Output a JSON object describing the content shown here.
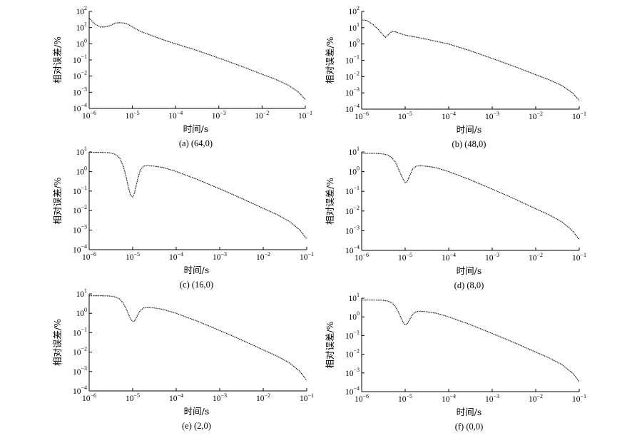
{
  "chart_data": [
    {
      "type": "line",
      "caption": "(a) (64,0)",
      "xlabel": "时间/s",
      "ylabel": "相对误差/%",
      "xscale": "log",
      "yscale": "log",
      "xlim": [
        1e-06,
        0.1
      ],
      "ylim": [
        0.0001,
        100.0
      ],
      "x_ticks": [
        {
          "base": "10",
          "exp": "−6"
        },
        {
          "base": "10",
          "exp": "−5"
        },
        {
          "base": "10",
          "exp": "−4"
        },
        {
          "base": "10",
          "exp": "−3"
        },
        {
          "base": "10",
          "exp": "−2"
        },
        {
          "base": "10",
          "exp": "−1"
        }
      ],
      "y_ticks": [
        {
          "base": "10",
          "exp": "2"
        },
        {
          "base": "10",
          "exp": "1"
        },
        {
          "base": "10",
          "exp": "0"
        },
        {
          "base": "10",
          "exp": "−1"
        },
        {
          "base": "10",
          "exp": "−2"
        },
        {
          "base": "10",
          "exp": "−3"
        },
        {
          "base": "10",
          "exp": "−4"
        }
      ],
      "series": [
        {
          "x": [
            1e-06,
            1.3e-06,
            1.8e-06,
            2.3e-06,
            3e-06,
            4e-06,
            5e-06,
            6.5e-06,
            8e-06,
            1e-05,
            1.5e-05,
            2e-05,
            3e-05,
            5e-05,
            0.0001,
            0.0003,
            0.001,
            0.003,
            0.01,
            0.02,
            0.04,
            0.07,
            0.1
          ],
          "y": [
            40,
            18,
            11,
            11,
            13,
            19,
            20,
            19,
            16,
            11,
            6,
            4.5,
            3,
            1.8,
            1,
            0.4,
            0.13,
            0.045,
            0.013,
            0.0065,
            0.0028,
            0.001,
            0.00035
          ]
        }
      ]
    },
    {
      "type": "line",
      "caption": "(b) (48,0)",
      "xlabel": "时间/s",
      "ylabel": "相对误差/%",
      "xscale": "log",
      "yscale": "log",
      "xlim": [
        1e-06,
        0.1
      ],
      "ylim": [
        0.0001,
        100.0
      ],
      "x_ticks": [
        {
          "base": "10",
          "exp": "−6"
        },
        {
          "base": "10",
          "exp": "−5"
        },
        {
          "base": "10",
          "exp": "−4"
        },
        {
          "base": "10",
          "exp": "−3"
        },
        {
          "base": "10",
          "exp": "−2"
        },
        {
          "base": "10",
          "exp": "−1"
        }
      ],
      "y_ticks": [
        {
          "base": "10",
          "exp": "2"
        },
        {
          "base": "10",
          "exp": "1"
        },
        {
          "base": "10",
          "exp": "0"
        },
        {
          "base": "10",
          "exp": "−1"
        },
        {
          "base": "10",
          "exp": "−2"
        },
        {
          "base": "10",
          "exp": "−3"
        },
        {
          "base": "10",
          "exp": "−4"
        }
      ],
      "series": [
        {
          "x": [
            1e-06,
            1.3e-06,
            1.8e-06,
            2.4e-06,
            3e-06,
            3.5e-06,
            4.2e-06,
            5e-06,
            6e-06,
            8e-06,
            1e-05,
            2e-05,
            5e-05,
            0.0001,
            0.0003,
            0.001,
            0.003,
            0.01,
            0.02,
            0.04,
            0.07,
            0.1
          ],
          "y": [
            30,
            28,
            16,
            8,
            4,
            2.5,
            4,
            6,
            5.5,
            4.2,
            3.5,
            2.5,
            1.5,
            1,
            0.4,
            0.13,
            0.045,
            0.013,
            0.0065,
            0.0028,
            0.001,
            0.00035
          ]
        }
      ]
    },
    {
      "type": "line",
      "caption": "(c) (16,0)",
      "xlabel": "时间/s",
      "ylabel": "相对误差/%",
      "xscale": "log",
      "yscale": "log",
      "xlim": [
        1e-06,
        0.1
      ],
      "ylim": [
        0.0001,
        10.0
      ],
      "x_ticks": [
        {
          "base": "10",
          "exp": "−6"
        },
        {
          "base": "10",
          "exp": "−5"
        },
        {
          "base": "10",
          "exp": "−4"
        },
        {
          "base": "10",
          "exp": "−3"
        },
        {
          "base": "10",
          "exp": "−2"
        },
        {
          "base": "10",
          "exp": "−1"
        }
      ],
      "y_ticks": [
        {
          "base": "10",
          "exp": "1"
        },
        {
          "base": "10",
          "exp": "0"
        },
        {
          "base": "10",
          "exp": "−1"
        },
        {
          "base": "10",
          "exp": "−2"
        },
        {
          "base": "10",
          "exp": "−3"
        },
        {
          "base": "10",
          "exp": "−4"
        }
      ],
      "series": [
        {
          "x": [
            1e-06,
            2e-06,
            3e-06,
            4e-06,
            5e-06,
            6e-06,
            7e-06,
            8e-06,
            9e-06,
            1e-05,
            1.1e-05,
            1.3e-05,
            1.5e-05,
            1.8e-05,
            2.2e-05,
            3e-05,
            5e-05,
            0.0001,
            0.0003,
            0.001,
            0.003,
            0.01,
            0.02,
            0.04,
            0.07,
            0.1
          ],
          "y": [
            9.5,
            9.5,
            9,
            7.5,
            5,
            2,
            0.6,
            0.15,
            0.06,
            0.05,
            0.08,
            0.4,
            1.2,
            1.9,
            2,
            1.9,
            1.6,
            1,
            0.4,
            0.13,
            0.045,
            0.013,
            0.0065,
            0.0028,
            0.001,
            0.00035
          ]
        }
      ]
    },
    {
      "type": "line",
      "caption": "(d) (8,0)",
      "xlabel": "时间/s",
      "ylabel": "相对误差/%",
      "xscale": "log",
      "yscale": "log",
      "xlim": [
        1e-06,
        0.1
      ],
      "ylim": [
        0.0001,
        10.0
      ],
      "x_ticks": [
        {
          "base": "10",
          "exp": "−6"
        },
        {
          "base": "10",
          "exp": "−5"
        },
        {
          "base": "10",
          "exp": "−4"
        },
        {
          "base": "10",
          "exp": "−3"
        },
        {
          "base": "10",
          "exp": "−2"
        },
        {
          "base": "10",
          "exp": "−1"
        }
      ],
      "y_ticks": [
        {
          "base": "10",
          "exp": "1"
        },
        {
          "base": "10",
          "exp": "0"
        },
        {
          "base": "10",
          "exp": "−1"
        },
        {
          "base": "10",
          "exp": "−2"
        },
        {
          "base": "10",
          "exp": "−3"
        },
        {
          "base": "10",
          "exp": "−4"
        }
      ],
      "series": [
        {
          "x": [
            1e-06,
            2e-06,
            3e-06,
            4e-06,
            5e-06,
            6e-06,
            7e-06,
            8e-06,
            9e-06,
            1e-05,
            1.1e-05,
            1.3e-05,
            1.5e-05,
            1.8e-05,
            2.2e-05,
            3e-05,
            5e-05,
            0.0001,
            0.0003,
            0.001,
            0.003,
            0.01,
            0.02,
            0.04,
            0.07,
            0.1
          ],
          "y": [
            8.5,
            8.5,
            8,
            7,
            5,
            3,
            1.4,
            0.7,
            0.4,
            0.28,
            0.3,
            0.7,
            1.4,
            1.9,
            2,
            1.9,
            1.6,
            1,
            0.4,
            0.13,
            0.045,
            0.013,
            0.0065,
            0.0028,
            0.001,
            0.00035
          ]
        }
      ]
    },
    {
      "type": "line",
      "caption": "(e) (2,0)",
      "xlabel": "时间/s",
      "ylabel": "相对误差/%",
      "xscale": "log",
      "yscale": "log",
      "xlim": [
        1e-06,
        0.1
      ],
      "ylim": [
        0.0001,
        10.0
      ],
      "x_ticks": [
        {
          "base": "10",
          "exp": "−6"
        },
        {
          "base": "10",
          "exp": "−5"
        },
        {
          "base": "10",
          "exp": "−4"
        },
        {
          "base": "10",
          "exp": "−3"
        },
        {
          "base": "10",
          "exp": "−2"
        },
        {
          "base": "10",
          "exp": "−1"
        }
      ],
      "y_ticks": [
        {
          "base": "10",
          "exp": "1"
        },
        {
          "base": "10",
          "exp": "0"
        },
        {
          "base": "10",
          "exp": "−1"
        },
        {
          "base": "10",
          "exp": "−2"
        },
        {
          "base": "10",
          "exp": "−3"
        },
        {
          "base": "10",
          "exp": "−4"
        }
      ],
      "series": [
        {
          "x": [
            1e-06,
            2e-06,
            3e-06,
            4e-06,
            5e-06,
            6e-06,
            7e-06,
            8e-06,
            9e-06,
            1e-05,
            1.1e-05,
            1.3e-05,
            1.5e-05,
            1.8e-05,
            2.2e-05,
            3e-05,
            5e-05,
            0.0001,
            0.0003,
            0.001,
            0.003,
            0.01,
            0.02,
            0.04,
            0.07,
            0.1
          ],
          "y": [
            8,
            8,
            7.8,
            7,
            5.5,
            3.5,
            1.8,
            0.9,
            0.5,
            0.38,
            0.4,
            0.8,
            1.4,
            1.9,
            2,
            1.9,
            1.6,
            1,
            0.4,
            0.13,
            0.045,
            0.013,
            0.0065,
            0.0028,
            0.001,
            0.00035
          ]
        }
      ]
    },
    {
      "type": "line",
      "caption": "(f) (0,0)",
      "xlabel": "时间/s",
      "ylabel": "相对误差/%",
      "xscale": "log",
      "yscale": "log",
      "xlim": [
        1e-06,
        0.1
      ],
      "ylim": [
        0.0001,
        10.0
      ],
      "x_ticks": [
        {
          "base": "10",
          "exp": "−6"
        },
        {
          "base": "10",
          "exp": "−5"
        },
        {
          "base": "10",
          "exp": "−4"
        },
        {
          "base": "10",
          "exp": "−3"
        },
        {
          "base": "10",
          "exp": "−2"
        },
        {
          "base": "10",
          "exp": "−1"
        }
      ],
      "y_ticks": [
        {
          "base": "10",
          "exp": "1"
        },
        {
          "base": "10",
          "exp": "0"
        },
        {
          "base": "10",
          "exp": "−1"
        },
        {
          "base": "10",
          "exp": "−2"
        },
        {
          "base": "10",
          "exp": "−3"
        },
        {
          "base": "10",
          "exp": "−4"
        }
      ],
      "series": [
        {
          "x": [
            1e-06,
            2e-06,
            3e-06,
            4e-06,
            5e-06,
            6e-06,
            7e-06,
            8e-06,
            9e-06,
            1e-05,
            1.1e-05,
            1.3e-05,
            1.5e-05,
            1.8e-05,
            2.2e-05,
            3e-05,
            5e-05,
            0.0001,
            0.0003,
            0.001,
            0.003,
            0.01,
            0.02,
            0.04,
            0.07,
            0.1
          ],
          "y": [
            8,
            8,
            7.8,
            7,
            5.5,
            3.5,
            1.8,
            0.9,
            0.5,
            0.38,
            0.4,
            0.8,
            1.4,
            1.9,
            2,
            1.9,
            1.6,
            1,
            0.4,
            0.13,
            0.045,
            0.013,
            0.0065,
            0.0028,
            0.001,
            0.00035
          ]
        }
      ]
    }
  ]
}
